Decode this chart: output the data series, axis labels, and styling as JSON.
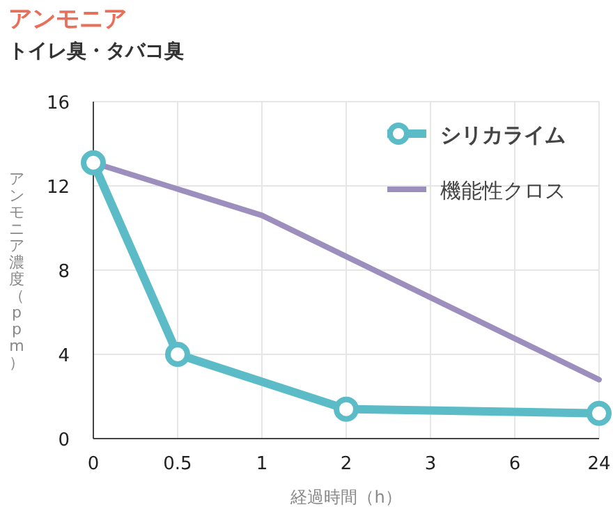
{
  "chart_data": {
    "type": "line",
    "title": "アンモニア",
    "subtitle": "トイレ臭・タバコ臭",
    "xlabel": "経過時間（h）",
    "ylabel": "アンモニア濃度（ppm）",
    "categories": [
      "0",
      "0.5",
      "1",
      "2",
      "3",
      "6",
      "24"
    ],
    "series": [
      {
        "name": "シリカライム",
        "color": "#5bbcc8",
        "marker": "circle",
        "values": [
          13.1,
          4.0,
          null,
          1.4,
          null,
          null,
          1.2
        ]
      },
      {
        "name": "機能性クロス",
        "color": "#9d8fbd",
        "marker": "none",
        "values": [
          13.1,
          null,
          10.6,
          null,
          null,
          null,
          2.8
        ]
      }
    ],
    "ylim": [
      0,
      16
    ],
    "yticks": [
      0,
      4,
      8,
      12,
      16
    ],
    "grid": true,
    "legend": "top right"
  }
}
